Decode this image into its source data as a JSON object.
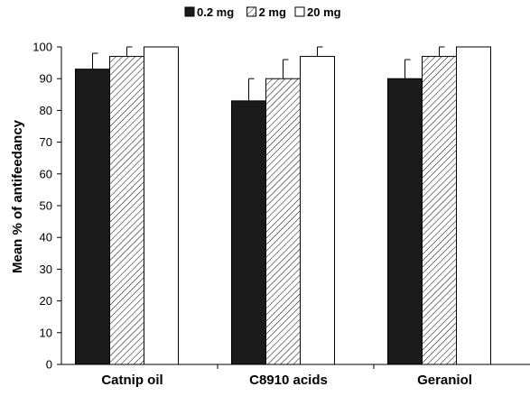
{
  "chart_data": {
    "type": "bar",
    "title": "",
    "xlabel": "",
    "ylabel": "Mean % of antifeedancy",
    "ylim": [
      0,
      100
    ],
    "yticks": [
      0,
      10,
      20,
      30,
      40,
      50,
      60,
      70,
      80,
      90,
      100
    ],
    "categories": [
      "Catnip oil",
      "C8910 acids",
      "Geraniol"
    ],
    "series": [
      {
        "name": "0.2 mg",
        "fill": "solid",
        "color": "#1a1a1a",
        "values": [
          93,
          83,
          90
        ],
        "errors": [
          5,
          7,
          6
        ]
      },
      {
        "name": "2 mg",
        "fill": "hatched",
        "color": "#ffffff",
        "values": [
          97,
          90,
          97
        ],
        "errors": [
          3,
          6,
          3
        ]
      },
      {
        "name": "20 mg",
        "fill": "open",
        "color": "#ffffff",
        "values": [
          100,
          97,
          100
        ],
        "errors": [
          0,
          3,
          0
        ]
      }
    ],
    "legend_position": "top-center",
    "grid": false
  }
}
